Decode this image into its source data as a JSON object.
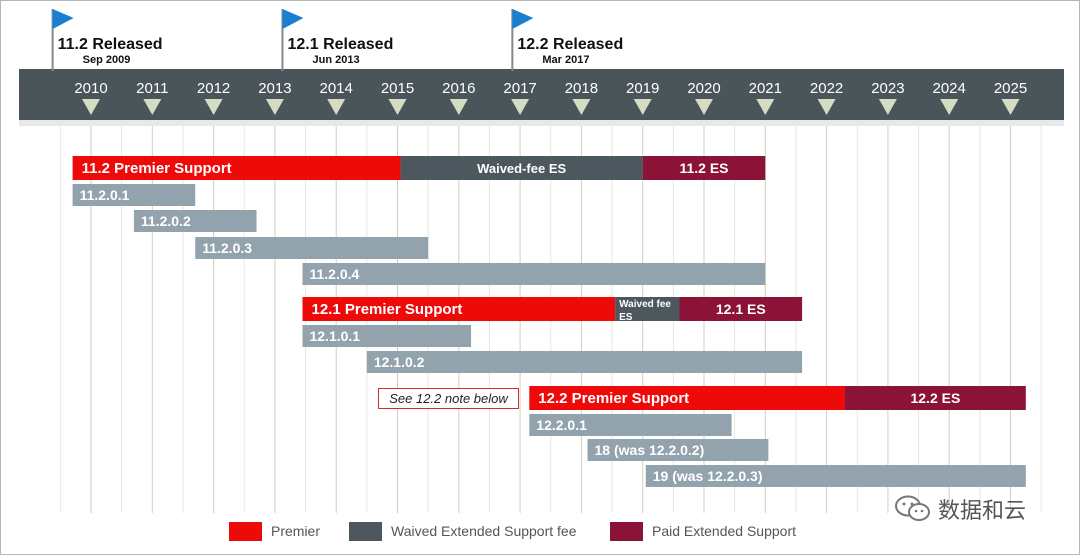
{
  "chart_data": {
    "type": "timeline",
    "years": [
      "2010",
      "2011",
      "2012",
      "2013",
      "2014",
      "2015",
      "2016",
      "2017",
      "2018",
      "2019",
      "2020",
      "2021",
      "2022",
      "2023",
      "2024",
      "2025"
    ],
    "releases": [
      {
        "label": "11.2 Released",
        "date": "Sep 2009",
        "at": 2009.7
      },
      {
        "label": "12.1 Released",
        "date": "Jun 2013",
        "at": 2013.45
      },
      {
        "label": "12.2 Released",
        "date": "Mar 2017",
        "at": 2017.2
      }
    ],
    "rows": [
      {
        "segments": [
          {
            "label": "11.2 Premier Support",
            "start": 2009.7,
            "end": 2015.05,
            "kind": "premier"
          },
          {
            "label": "Waived-fee ES",
            "start": 2015.05,
            "end": 2019.0,
            "kind": "waived"
          },
          {
            "label": "11.2 ES",
            "start": 2019.0,
            "end": 2021.0,
            "kind": "paid"
          }
        ]
      },
      {
        "segments": [
          {
            "label": "11.2.0.1",
            "start": 2009.7,
            "end": 2011.7,
            "kind": "patch"
          }
        ]
      },
      {
        "segments": [
          {
            "label": "11.2.0.2",
            "start": 2010.7,
            "end": 2012.7,
            "kind": "patch"
          }
        ]
      },
      {
        "segments": [
          {
            "label": "11.2.0.3",
            "start": 2011.7,
            "end": 2015.5,
            "kind": "patch"
          }
        ]
      },
      {
        "segments": [
          {
            "label": "11.2.0.4",
            "start": 2013.45,
            "end": 2021.0,
            "kind": "patch"
          }
        ]
      },
      {
        "segments": [
          {
            "label": "12.1 Premier Support",
            "start": 2013.45,
            "end": 2018.55,
            "kind": "premier"
          },
          {
            "label": "Waived fee ES",
            "start": 2018.55,
            "end": 2019.6,
            "kind": "waived"
          },
          {
            "label": "12.1 ES",
            "start": 2019.6,
            "end": 2021.6,
            "kind": "paid"
          }
        ]
      },
      {
        "segments": [
          {
            "label": "12.1.0.1",
            "start": 2013.45,
            "end": 2016.2,
            "kind": "patch"
          }
        ]
      },
      {
        "segments": [
          {
            "label": "12.1.0.2",
            "start": 2014.5,
            "end": 2021.6,
            "kind": "patch"
          }
        ]
      },
      {
        "segments": [
          {
            "label": "12.2 Premier Support",
            "start": 2017.15,
            "end": 2022.3,
            "kind": "premier"
          },
          {
            "label": "12.2 ES",
            "start": 2022.3,
            "end": 2025.25,
            "kind": "paid"
          }
        ]
      },
      {
        "segments": [
          {
            "label": "12.2.0.1",
            "start": 2017.15,
            "end": 2020.45,
            "kind": "patch"
          }
        ]
      },
      {
        "segments": [
          {
            "label": "18 (was 12.2.0.2)",
            "start": 2018.1,
            "end": 2021.05,
            "kind": "patch"
          }
        ]
      },
      {
        "segments": [
          {
            "label": "19 (was 12.2.0.3)",
            "start": 2019.05,
            "end": 2025.25,
            "kind": "patch"
          }
        ]
      }
    ],
    "note": "See 12.2 note below",
    "legend": [
      {
        "label": "Premier",
        "color": "#ef0a0a"
      },
      {
        "label": "Waived Extended Support fee",
        "color": "#4c585e"
      },
      {
        "label": "Paid Extended Support",
        "color": "#8a1337"
      }
    ],
    "colors": {
      "premier": "#ef0a0a",
      "waived": "#4c585e",
      "paid": "#8a1337",
      "patch": "#93a3ae",
      "band": "#4a5559",
      "flag": "#1a7fd1",
      "triangle": "#d4dcc2"
    }
  },
  "watermark": {
    "text": "数据和云",
    "icon": "wechat-icon"
  }
}
